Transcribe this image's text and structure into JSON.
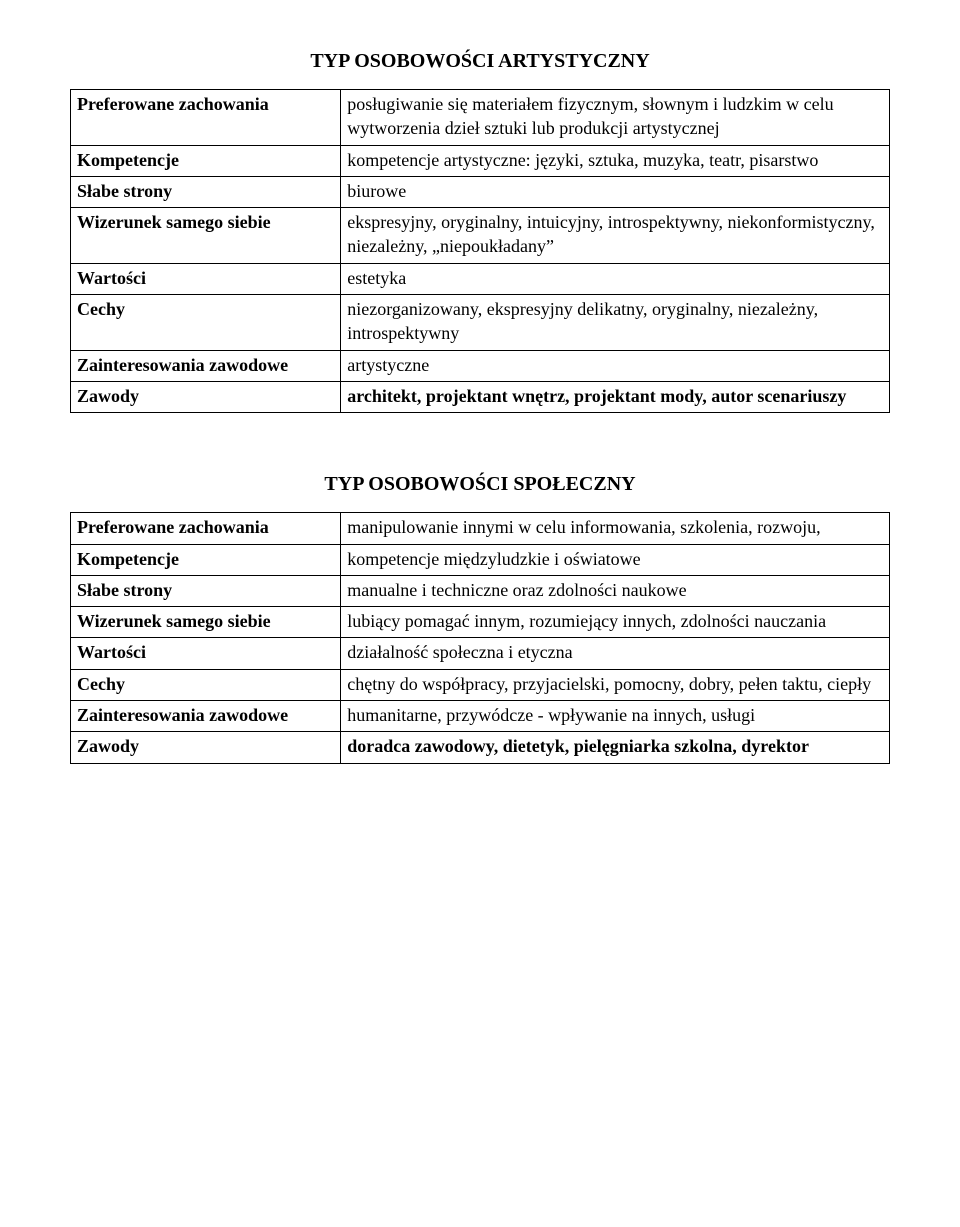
{
  "table1": {
    "title": "TYP OSOBOWOŚCI ARTYSTYCZNY",
    "rows": [
      {
        "label": "Preferowane zachowania",
        "value": "posługiwanie się materiałem fizycznym, słownym i ludzkim w celu wytworzenia dzieł sztuki lub produkcji artystycznej",
        "bold": false
      },
      {
        "label": "Kompetencje",
        "value": "kompetencje artystyczne: języki, sztuka, muzyka, teatr, pisarstwo",
        "bold": false
      },
      {
        "label": "Słabe strony",
        "value": "biurowe",
        "bold": false
      },
      {
        "label": "Wizerunek samego siebie",
        "value": "ekspresyjny, oryginalny, intuicyjny, introspektywny, niekonformistyczny, niezależny, „niepoukładany”",
        "bold": false
      },
      {
        "label": "Wartości",
        "value": "estetyka",
        "bold": false
      },
      {
        "label": "Cechy",
        "value": "niezorganizowany, ekspresyjny delikatny, oryginalny, niezależny, introspektywny",
        "bold": false
      },
      {
        "label": "Zainteresowania zawodowe",
        "value": "artystyczne",
        "bold": false
      },
      {
        "label": "Zawody",
        "value": "architekt, projektant wnętrz, projektant mody, autor scenariuszy",
        "bold": true
      }
    ]
  },
  "table2": {
    "title": "TYP OSOBOWOŚCI SPOŁECZNY",
    "rows": [
      {
        "label": "Preferowane zachowania",
        "value": "manipulowanie innymi w celu informowania, szkolenia, rozwoju,",
        "bold": false
      },
      {
        "label": "Kompetencje",
        "value": "kompetencje międzyludzkie i oświatowe",
        "bold": false
      },
      {
        "label": "Słabe strony",
        "value": "manualne i techniczne oraz zdolności naukowe",
        "bold": false
      },
      {
        "label": "Wizerunek samego siebie",
        "value": "lubiący pomagać innym, rozumiejący innych, zdolności nauczania",
        "bold": false
      },
      {
        "label": "Wartości",
        "value": "działalność społeczna i etyczna",
        "bold": false
      },
      {
        "label": "Cechy",
        "value": "chętny do współpracy, przyjacielski, pomocny, dobry, pełen taktu, ciepły",
        "bold": false
      },
      {
        "label": "Zainteresowania zawodowe",
        "value": "humanitarne, przywódcze - wpływanie na innych, usługi",
        "bold": false
      },
      {
        "label": "Zawody",
        "value": "doradca zawodowy, dietetyk, pielęgniarka szkolna, dyrektor",
        "bold": true
      }
    ]
  }
}
